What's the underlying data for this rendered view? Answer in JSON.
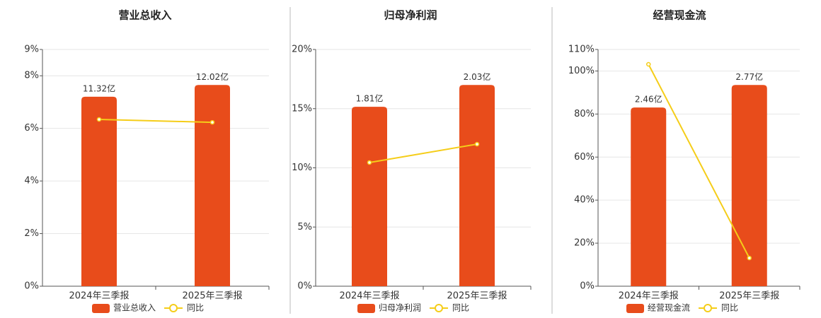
{
  "chart_data": [
    {
      "type": "bar",
      "title": "营业总收入",
      "categories": [
        "2024年三季报",
        "2025年三季报"
      ],
      "series": [
        {
          "name": "营业总收入",
          "color": "#e84c1b",
          "values": [
            11.32,
            12.02
          ],
          "value_labels": [
            "11.32亿",
            "12.02亿"
          ]
        },
        {
          "name": "同比",
          "color": "#f5cd19",
          "type": "line",
          "values": [
            6.34,
            6.23
          ]
        }
      ],
      "ylim": [
        0,
        9
      ],
      "yticks": [
        {
          "value": 0,
          "label": "0%"
        },
        {
          "value": 2,
          "label": "2%"
        },
        {
          "value": 4,
          "label": "4%"
        },
        {
          "value": 6,
          "label": "6%"
        },
        {
          "value": 8,
          "label": "8%"
        },
        {
          "value": 9,
          "label": "9%"
        }
      ],
      "grid": true
    },
    {
      "type": "bar",
      "title": "归母净利润",
      "categories": [
        "2024年三季报",
        "2025年三季报"
      ],
      "series": [
        {
          "name": "归母净利润",
          "color": "#e84c1b",
          "values": [
            1.81,
            2.03
          ],
          "value_labels": [
            "1.81亿",
            "2.03亿"
          ]
        },
        {
          "name": "同比",
          "color": "#f5cd19",
          "type": "line",
          "values": [
            10.45,
            12.0
          ]
        }
      ],
      "ylim": [
        0,
        20
      ],
      "yticks": [
        {
          "value": 0,
          "label": "0%"
        },
        {
          "value": 5,
          "label": "5%"
        },
        {
          "value": 10,
          "label": "10%"
        },
        {
          "value": 15,
          "label": "15%"
        },
        {
          "value": 20,
          "label": "20%"
        }
      ],
      "grid": true
    },
    {
      "type": "bar",
      "title": "经营现金流",
      "categories": [
        "2024年三季报",
        "2025年三季报"
      ],
      "series": [
        {
          "name": "经营现金流",
          "color": "#e84c1b",
          "values": [
            2.46,
            2.77
          ],
          "value_labels": [
            "2.46亿",
            "2.77亿"
          ]
        },
        {
          "name": "同比",
          "color": "#f5cd19",
          "type": "line",
          "values": [
            103.1,
            13.1
          ]
        }
      ],
      "ylim": [
        0,
        110
      ],
      "yticks": [
        {
          "value": 0,
          "label": "0%"
        },
        {
          "value": 20,
          "label": "20%"
        },
        {
          "value": 40,
          "label": "40%"
        },
        {
          "value": 60,
          "label": "60%"
        },
        {
          "value": 80,
          "label": "80%"
        },
        {
          "value": 100,
          "label": "100%"
        },
        {
          "value": 110,
          "label": "110%"
        }
      ],
      "grid": true
    }
  ]
}
